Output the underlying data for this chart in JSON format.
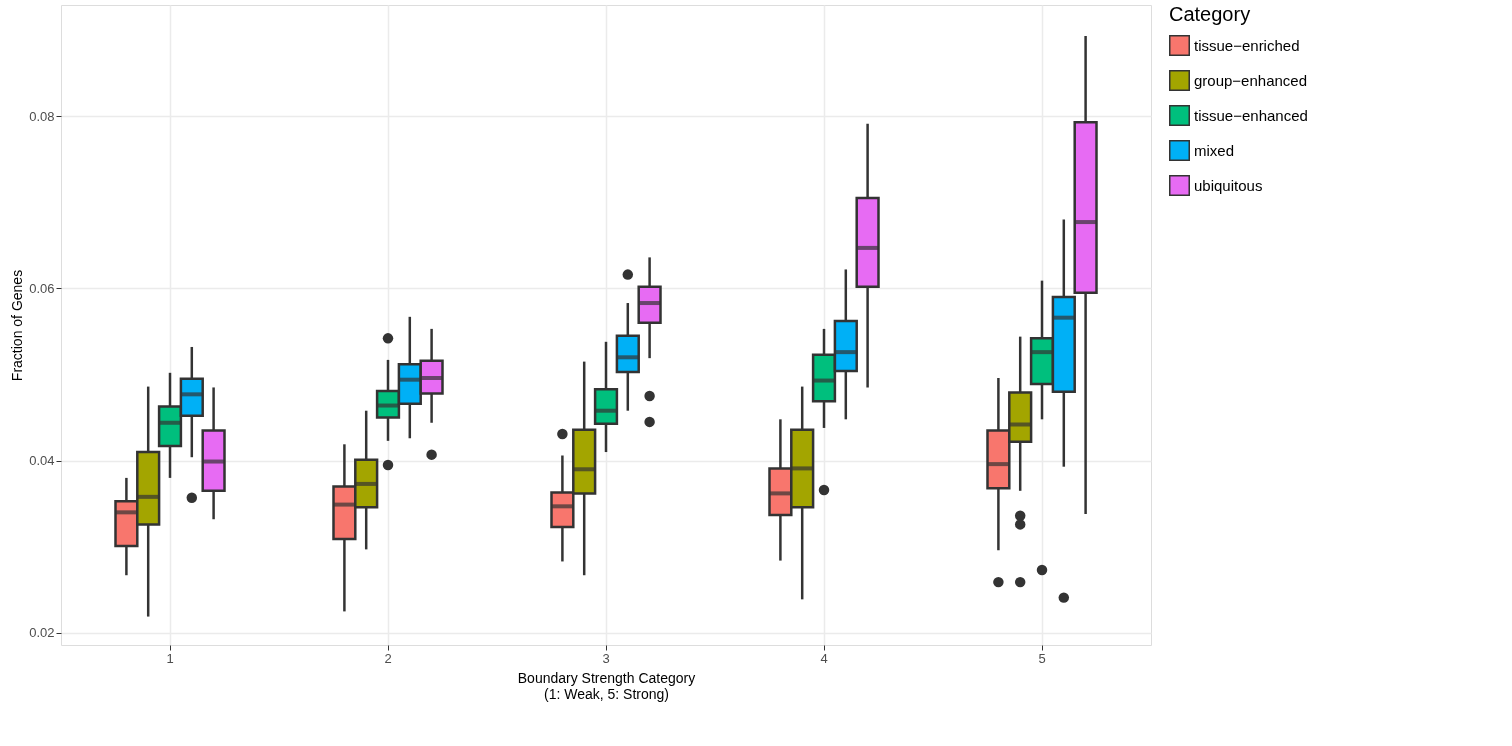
{
  "chart_data": {
    "type": "box",
    "xlabel": "Boundary Strength Category\n(1: Weak, 5: Strong)",
    "ylabel": "Fraction of Genes",
    "legend_title": "Category",
    "categories": [
      "1",
      "2",
      "3",
      "4",
      "5"
    ],
    "series": [
      {
        "name": "tissue−enriched",
        "color": "#f8766d",
        "boxes": [
          {
            "low": 0.0267,
            "q1": 0.0301,
            "median": 0.034,
            "q3": 0.0353,
            "high": 0.038
          },
          {
            "low": 0.0225,
            "q1": 0.0309,
            "median": 0.0349,
            "q3": 0.037,
            "high": 0.0419
          },
          {
            "low": 0.0283,
            "q1": 0.0323,
            "median": 0.0347,
            "q3": 0.0363,
            "high": 0.0406,
            "outliers": [
              0.0431
            ]
          },
          {
            "low": 0.0284,
            "q1": 0.0337,
            "median": 0.0362,
            "q3": 0.0391,
            "high": 0.0448
          },
          {
            "low": 0.0296,
            "q1": 0.0368,
            "median": 0.0396,
            "q3": 0.0435,
            "high": 0.0496,
            "outliers": [
              0.0259
            ]
          }
        ]
      },
      {
        "name": "group−enhanced",
        "color": "#a3a500",
        "boxes": [
          {
            "low": 0.0219,
            "q1": 0.0326,
            "median": 0.0358,
            "q3": 0.041,
            "high": 0.0486
          },
          {
            "low": 0.0297,
            "q1": 0.0346,
            "median": 0.0373,
            "q3": 0.0401,
            "high": 0.0458
          },
          {
            "low": 0.0267,
            "q1": 0.0362,
            "median": 0.039,
            "q3": 0.0436,
            "high": 0.0515
          },
          {
            "low": 0.0239,
            "q1": 0.0346,
            "median": 0.0391,
            "q3": 0.0436,
            "high": 0.0486
          },
          {
            "low": 0.0365,
            "q1": 0.0422,
            "median": 0.0442,
            "q3": 0.0479,
            "high": 0.0544,
            "outliers": [
              0.0336,
              0.0326,
              0.0259
            ]
          }
        ]
      },
      {
        "name": "tissue−enhanced",
        "color": "#00bf7d",
        "boxes": [
          {
            "low": 0.038,
            "q1": 0.0417,
            "median": 0.0444,
            "q3": 0.0463,
            "high": 0.0502
          },
          {
            "low": 0.0423,
            "q1": 0.045,
            "median": 0.0464,
            "q3": 0.0481,
            "high": 0.0517,
            "outliers": [
              0.0542,
              0.0395
            ]
          },
          {
            "low": 0.041,
            "q1": 0.0443,
            "median": 0.0458,
            "q3": 0.0483,
            "high": 0.0538
          },
          {
            "low": 0.0438,
            "q1": 0.0469,
            "median": 0.0493,
            "q3": 0.0523,
            "high": 0.0553,
            "outliers": [
              0.0366
            ]
          },
          {
            "low": 0.0448,
            "q1": 0.0489,
            "median": 0.0526,
            "q3": 0.0542,
            "high": 0.0609,
            "outliers": [
              0.0273
            ]
          }
        ]
      },
      {
        "name": "mixed",
        "color": "#00b0f6",
        "boxes": [
          {
            "low": 0.0404,
            "q1": 0.0452,
            "median": 0.0477,
            "q3": 0.0495,
            "high": 0.0532,
            "outliers": [
              0.0357
            ]
          },
          {
            "low": 0.0426,
            "q1": 0.0466,
            "median": 0.0494,
            "q3": 0.0512,
            "high": 0.0567
          },
          {
            "low": 0.0458,
            "q1": 0.0503,
            "median": 0.052,
            "q3": 0.0545,
            "high": 0.0583,
            "outliers": [
              0.0616
            ]
          },
          {
            "low": 0.0448,
            "q1": 0.0504,
            "median": 0.0526,
            "q3": 0.0562,
            "high": 0.0622
          },
          {
            "low": 0.0393,
            "q1": 0.048,
            "median": 0.0566,
            "q3": 0.059,
            "high": 0.068,
            "outliers": [
              0.0241
            ]
          }
        ]
      },
      {
        "name": "ubiquitous",
        "color": "#e76bf3",
        "boxes": [
          {
            "low": 0.0332,
            "q1": 0.0365,
            "median": 0.0399,
            "q3": 0.0435,
            "high": 0.0485
          },
          {
            "low": 0.0444,
            "q1": 0.0478,
            "median": 0.0496,
            "q3": 0.0516,
            "high": 0.0553,
            "outliers": [
              0.0407
            ]
          },
          {
            "low": 0.0519,
            "q1": 0.056,
            "median": 0.0583,
            "q3": 0.0602,
            "high": 0.0636,
            "outliers": [
              0.0475,
              0.0445
            ]
          },
          {
            "low": 0.0485,
            "q1": 0.0602,
            "median": 0.0647,
            "q3": 0.0705,
            "high": 0.0791
          },
          {
            "low": 0.0338,
            "q1": 0.0595,
            "median": 0.0677,
            "q3": 0.0793,
            "high": 0.0893
          }
        ]
      }
    ],
    "ylim": [
      0.0186,
      0.0929
    ],
    "yticks": [
      0.02,
      0.04,
      0.06,
      0.08
    ],
    "grid": true,
    "legend": "right"
  }
}
